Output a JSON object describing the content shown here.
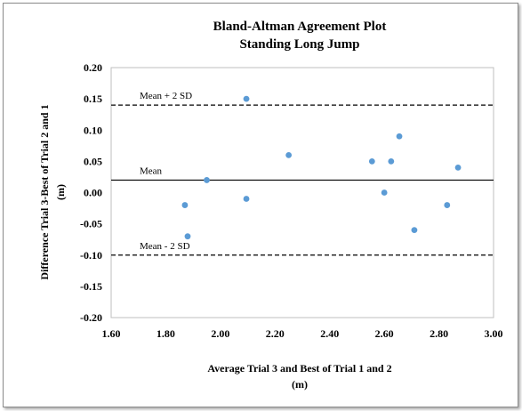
{
  "chart_data": {
    "type": "scatter",
    "title": [
      "Bland-Altman Agreement Plot",
      "Standing Long Jump"
    ],
    "xlabel": [
      "Average Trial 3 and Best of Trial 1 and 2",
      "(m)"
    ],
    "ylabel": [
      "Difference Trial 3-Best of Trial 2 and 1",
      "(m)"
    ],
    "xlim": [
      1.6,
      3.0
    ],
    "ylim": [
      -0.2,
      0.2
    ],
    "x_ticks": [
      "1.60",
      "1.80",
      "2.00",
      "2.20",
      "2.40",
      "2.60",
      "2.80",
      "3.00"
    ],
    "y_ticks": [
      "0.20",
      "0.15",
      "0.10",
      "0.05",
      "0.00",
      "-0.05",
      "-0.10",
      "-0.15",
      "-0.20"
    ],
    "grid": false,
    "point_color": "#5b9bd5",
    "points": [
      {
        "x": 1.87,
        "y": -0.02
      },
      {
        "x": 1.88,
        "y": -0.07
      },
      {
        "x": 1.95,
        "y": 0.02
      },
      {
        "x": 2.095,
        "y": 0.15
      },
      {
        "x": 2.095,
        "y": -0.01
      },
      {
        "x": 2.25,
        "y": 0.06
      },
      {
        "x": 2.555,
        "y": 0.05
      },
      {
        "x": 2.6,
        "y": 0.0
      },
      {
        "x": 2.625,
        "y": 0.05
      },
      {
        "x": 2.655,
        "y": 0.09
      },
      {
        "x": 2.71,
        "y": -0.06
      },
      {
        "x": 2.83,
        "y": -0.02
      },
      {
        "x": 2.87,
        "y": 0.04
      }
    ],
    "reference_lines": [
      {
        "label": "Mean + 2 SD",
        "y": 0.14,
        "style": "dashed"
      },
      {
        "label": "Mean",
        "y": 0.02,
        "style": "solid"
      },
      {
        "label": "Mean - 2 SD",
        "y": -0.1,
        "style": "dashed"
      }
    ]
  }
}
